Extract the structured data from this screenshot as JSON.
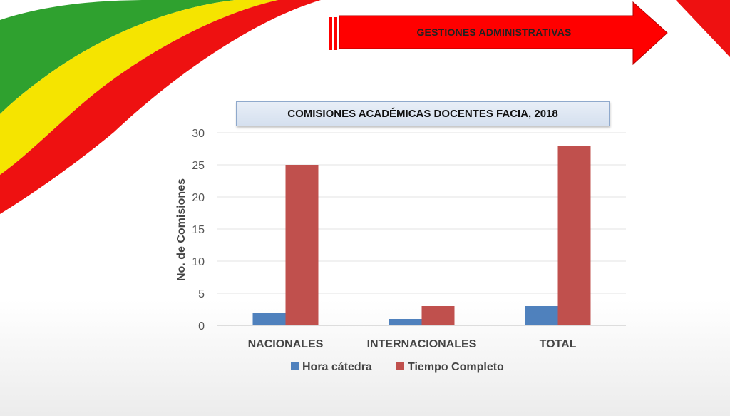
{
  "banner": {
    "text": "GESTIONES ADMINISTRATIVAS",
    "color": "#ff0000"
  },
  "flag_colors": [
    "#2fa12f",
    "#f5e400",
    "#ee1111"
  ],
  "chart_data": {
    "type": "bar",
    "title": "COMISIONES ACADÉMICAS DOCENTES FACIA, 2018",
    "ylabel": "No. de Comisiones",
    "xlabel": "",
    "categories": [
      "NACIONALES",
      "INTERNACIONALES",
      "TOTAL"
    ],
    "series": [
      {
        "name": "Hora cátedra",
        "values": [
          2,
          1,
          3
        ],
        "color": "#4f81bd"
      },
      {
        "name": "Tiempo Completo",
        "values": [
          25,
          3,
          28
        ],
        "color": "#c0504d"
      }
    ],
    "ylim": [
      0,
      30
    ],
    "yticks": [
      0,
      5,
      10,
      15,
      20,
      25,
      30
    ],
    "grid": true,
    "legend_position": "bottom"
  }
}
